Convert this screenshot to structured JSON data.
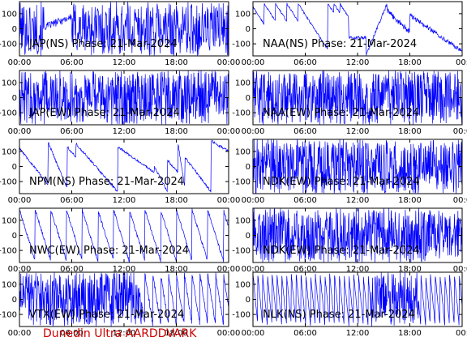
{
  "footer_text": "Dunedin Ultra AARDDVARK",
  "colors": {
    "trace": "#0000ff",
    "axis": "#000000",
    "footer": "#cc0000"
  },
  "chart_data": [
    {
      "type": "line",
      "title": "JAP(NS) Phase: 21-Mar-2024",
      "xticks": [
        "00:00",
        "06:00",
        "12:00",
        "18:00",
        "00:00"
      ],
      "ylim": [
        -180,
        180
      ],
      "yticks": [
        100,
        0,
        -100
      ],
      "pattern": "jap-ns",
      "series": [
        {
          "x": [],
          "values": []
        }
      ]
    },
    {
      "type": "line",
      "title": "NAA(NS) Phase: 21-Mar-2024",
      "xticks": [
        "00:00",
        "06:00",
        "12:00",
        "18:00",
        "00:"
      ],
      "ylim": [
        -180,
        180
      ],
      "yticks": [
        100,
        0,
        -100
      ],
      "pattern": "naa-ns",
      "series": [
        {
          "x": [],
          "values": []
        }
      ]
    },
    {
      "type": "line",
      "title": "JAP(EW) Phase: 21-Mar-2024",
      "xticks": [
        "00:00",
        "06:00",
        "12:00",
        "18:00",
        "00:00"
      ],
      "ylim": [
        -180,
        180
      ],
      "yticks": [
        100,
        0,
        -100
      ],
      "pattern": "dense",
      "series": [
        {
          "x": [],
          "values": []
        }
      ]
    },
    {
      "type": "line",
      "title": "NAA(EW) Phase: 21-Mar-2024",
      "xticks": [
        "00:00",
        "06:00",
        "12:00",
        "18:00",
        "00:0"
      ],
      "ylim": [
        -180,
        180
      ],
      "yticks": [
        100,
        0,
        -100
      ],
      "pattern": "dense",
      "series": [
        {
          "x": [],
          "values": []
        }
      ]
    },
    {
      "type": "line",
      "title": "NPM(NS) Phase: 21-Mar-2024",
      "xticks": [
        "00:00",
        "06:00",
        "12:00",
        "18:00",
        "00:00"
      ],
      "ylim": [
        -180,
        180
      ],
      "yticks": [
        100,
        0,
        -100
      ],
      "pattern": "npm-ns",
      "series": [
        {
          "x": [],
          "values": []
        }
      ]
    },
    {
      "type": "line",
      "title": "NDK(EW) Phase: 21-Mar-2024",
      "xticks": [
        "00:00",
        "06:00",
        "12:00",
        "18:00",
        "00:0"
      ],
      "ylim": [
        -180,
        180
      ],
      "yticks": [
        100,
        0,
        -100
      ],
      "pattern": "dense",
      "series": [
        {
          "x": [],
          "values": []
        }
      ]
    },
    {
      "type": "line",
      "title": "NWC(EW) Phase: 21-Mar-2024",
      "xticks": [
        "00:00",
        "06:00",
        "12:00",
        "18:00",
        "00:00"
      ],
      "ylim": [
        -180,
        180
      ],
      "yticks": [
        100,
        0,
        -100
      ],
      "pattern": "nwc-ew",
      "series": [
        {
          "x": [],
          "values": []
        }
      ]
    },
    {
      "type": "line",
      "title": "NDK(EW) Phase: 21-Mar-2024",
      "xticks": [
        "00:00",
        "06:00",
        "12:00",
        "18:00",
        "00:0"
      ],
      "ylim": [
        -180,
        180
      ],
      "yticks": [
        100,
        0,
        -100
      ],
      "pattern": "dense",
      "series": [
        {
          "x": [],
          "values": []
        }
      ]
    },
    {
      "type": "line",
      "title": "VTX(EW) Phase: 21-Mar-2024",
      "xticks": [
        "00:00",
        "06:00",
        "12:00",
        "18:00",
        "00:00"
      ],
      "ylim": [
        -180,
        180
      ],
      "yticks": [
        100,
        0,
        -100
      ],
      "pattern": "vtx-ew",
      "series": [
        {
          "x": [],
          "values": []
        }
      ]
    },
    {
      "type": "line",
      "title": "NLK(NS) Phase: 21-Mar-2024",
      "xticks": [
        "00:00",
        "06:00",
        "12:00",
        "18:00",
        "00:"
      ],
      "ylim": [
        -180,
        180
      ],
      "yticks": [
        100,
        0,
        -100
      ],
      "pattern": "nlk-ns",
      "series": [
        {
          "x": [],
          "values": []
        }
      ]
    }
  ]
}
